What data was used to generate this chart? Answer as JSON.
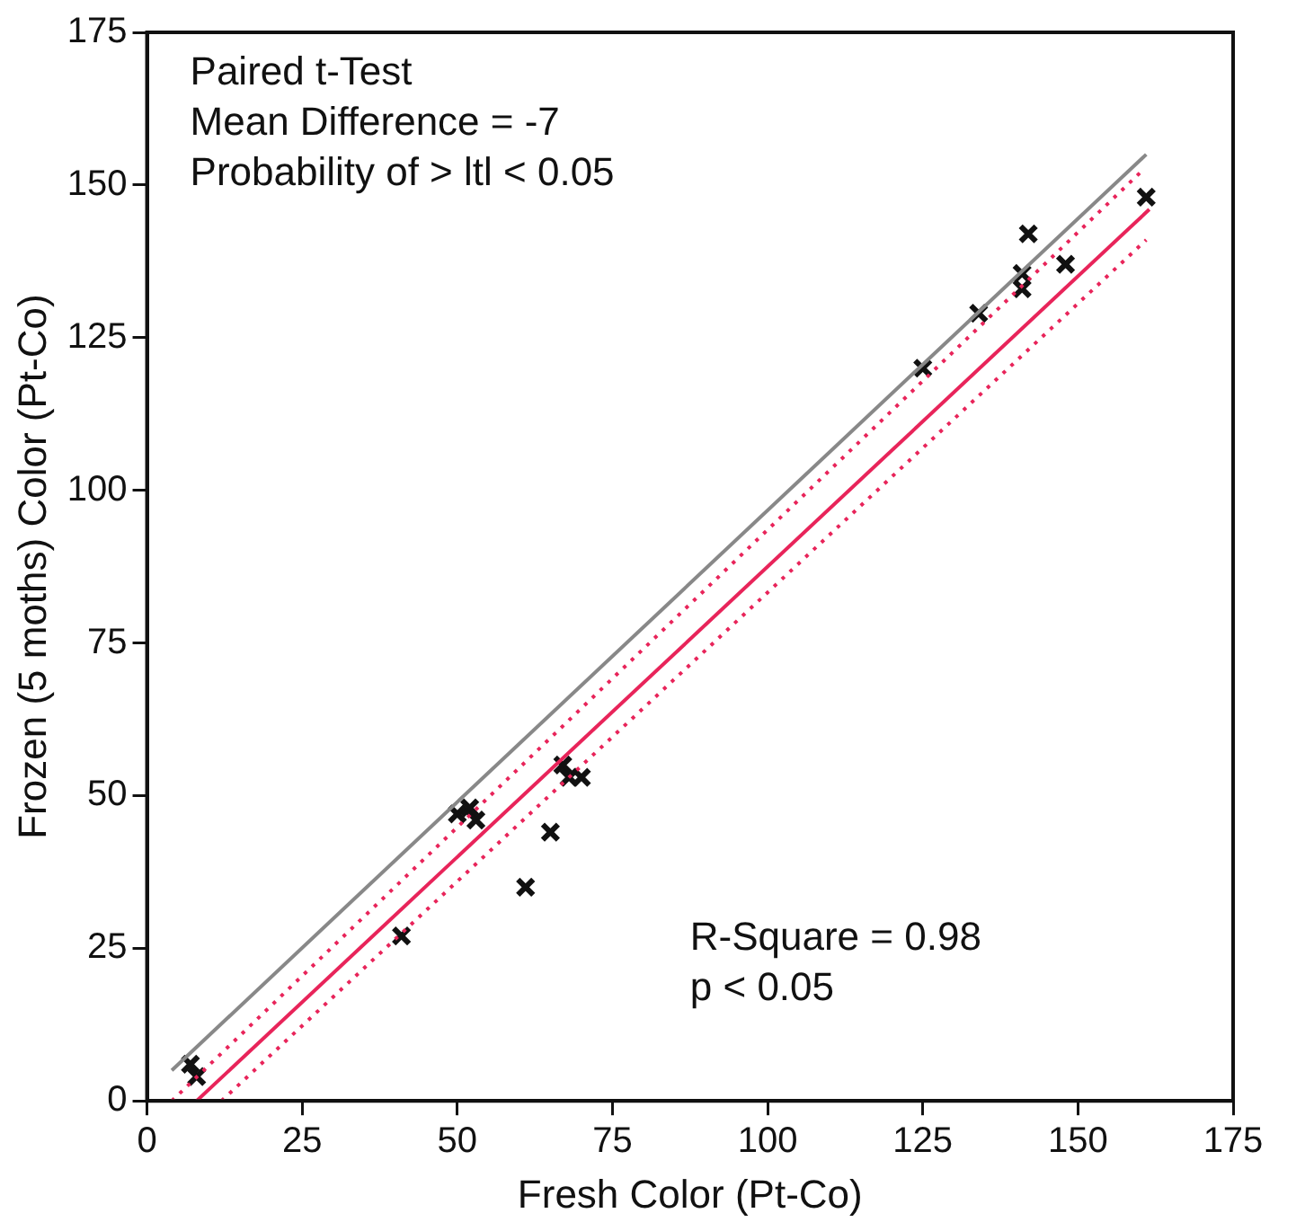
{
  "chart_data": {
    "type": "scatter",
    "xlabel": "Fresh Color (Pt-Co)",
    "ylabel": "Frozen (5 moths) Color (Pt-Co)",
    "xlim": [
      0,
      175
    ],
    "xticks": [
      0,
      25,
      50,
      75,
      100,
      125,
      150,
      175
    ],
    "ylim": [
      0,
      175
    ],
    "yticks": [
      0,
      25,
      50,
      75,
      100,
      125,
      150,
      175
    ],
    "grid": false,
    "legend": false,
    "marker": "cross",
    "annotations": [
      "Paired t-Test\nMean Difference = -7\nProbability of > ltl < 0.05",
      "R-Square = 0.98\np < 0.05"
    ],
    "series": [
      {
        "color": "#111111",
        "x": [
          7,
          8,
          50,
          53,
          52,
          41,
          61,
          65,
          67,
          68,
          70,
          125,
          134,
          141,
          141,
          142,
          148,
          161
        ],
        "values": [
          6,
          4,
          47,
          46,
          48,
          27,
          35,
          44,
          55,
          53,
          53,
          120,
          129,
          133,
          135.5,
          142,
          137,
          148
        ]
      },
      {
        "type": "line",
        "color": "#888888",
        "line_style": "solid",
        "marker": "none",
        "x": [
          4,
          161
        ],
        "values": [
          5,
          155
        ]
      },
      {
        "type": "line",
        "color": "#e8245a",
        "line_style": "solid",
        "marker": "none",
        "x": [
          8,
          161.5
        ],
        "values": [
          0,
          146
        ]
      },
      {
        "type": "line",
        "color": "#e8245a",
        "line_style": "dotted",
        "marker": "none",
        "x": [
          4,
          160
        ],
        "values": [
          0,
          152
        ]
      },
      {
        "type": "line",
        "color": "#e8245a",
        "line_style": "dotted",
        "marker": "none",
        "x": [
          12,
          161
        ],
        "values": [
          0,
          141
        ]
      }
    ]
  }
}
